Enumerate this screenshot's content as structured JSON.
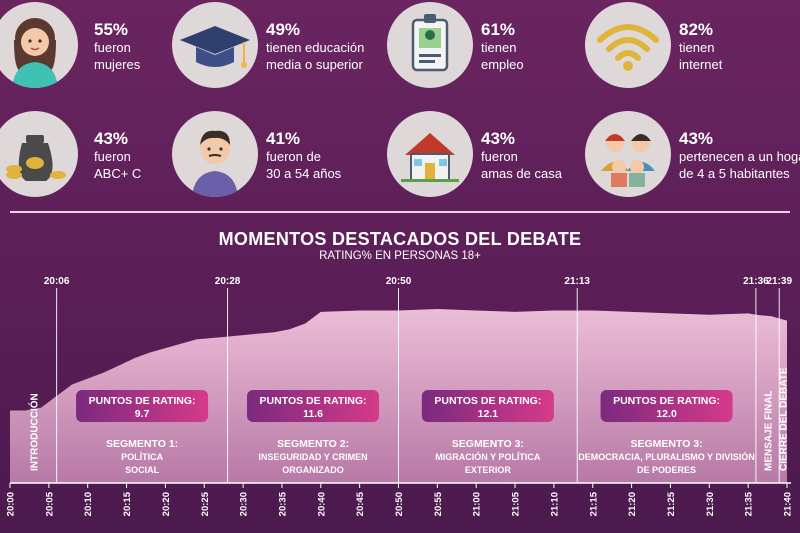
{
  "stats": [
    {
      "pct": "55%",
      "label1": "fueron",
      "label2": "mujeres",
      "icon": "woman-icon"
    },
    {
      "pct": "49%",
      "label1": "tienen educación",
      "label2": "media o superior",
      "icon": "graduation-cap-icon"
    },
    {
      "pct": "61%",
      "label1": "tienen",
      "label2": "empleo",
      "icon": "id-badge-icon"
    },
    {
      "pct": "82%",
      "label1": "tienen",
      "label2": "internet",
      "icon": "wifi-icon"
    },
    {
      "pct": "43%",
      "label1": "fueron",
      "label2": "ABC+ C",
      "icon": "money-bag-icon"
    },
    {
      "pct": "41%",
      "label1": "fueron de",
      "label2": "30 a 54 años",
      "icon": "man-icon"
    },
    {
      "pct": "43%",
      "label1": "fueron",
      "label2": "amas de casa",
      "icon": "house-icon"
    },
    {
      "pct": "43%",
      "label1": "pertenecen a un hogar",
      "label2": "de 4 a 5 habitantes",
      "icon": "family-icon"
    }
  ],
  "colors": {
    "accent_pink": "#d63a8a",
    "accent_purple": "#7a2a7e",
    "area_top": "#e9b7d2",
    "area_bottom": "#c98ab2"
  },
  "chart_data": {
    "type": "area",
    "title": "MOMENTOS DESTACADOS DEL DEBATE",
    "subtitle": "RATING% EN PERSONAS 18+",
    "x_ticks": [
      "20:00",
      "20:05",
      "20:10",
      "20:15",
      "20:20",
      "20:25",
      "20:30",
      "20:35",
      "20:40",
      "20:45",
      "20:50",
      "20:55",
      "21:00",
      "21:05",
      "21:10",
      "21:15",
      "21:20",
      "21:25",
      "21:30",
      "21:35",
      "21:40"
    ],
    "x_range_minutes": [
      0,
      100
    ],
    "y_range": [
      0,
      14
    ],
    "series": [
      {
        "name": "Rating",
        "x": [
          0,
          2,
          4,
          6,
          8,
          10,
          12,
          14,
          16,
          18,
          20,
          22,
          24,
          26,
          28,
          30,
          32,
          34,
          36,
          38,
          40,
          45,
          50,
          55,
          60,
          65,
          70,
          75,
          80,
          85,
          90,
          95,
          96,
          98,
          100
        ],
        "y": [
          5.0,
          5.0,
          5.2,
          6.0,
          6.8,
          7.2,
          7.6,
          8.1,
          8.6,
          9.0,
          9.3,
          9.6,
          9.9,
          10.0,
          10.1,
          10.2,
          10.3,
          10.4,
          10.6,
          11.0,
          11.8,
          11.9,
          11.9,
          12.0,
          11.9,
          11.8,
          11.9,
          11.9,
          11.8,
          11.7,
          11.6,
          11.7,
          11.6,
          11.5,
          11.2
        ]
      }
    ],
    "markers": [
      {
        "label": "20:06",
        "minute": 6
      },
      {
        "label": "20:28",
        "minute": 28
      },
      {
        "label": "20:50",
        "minute": 50
      },
      {
        "label": "21:13",
        "minute": 73
      },
      {
        "label": "21:36",
        "minute": 96
      },
      {
        "label": "21:39",
        "minute": 99
      }
    ],
    "segments": [
      {
        "rating_label": "PUNTOS DE RATING:",
        "rating_value": "9.7",
        "name": "SEGMENTO 1:",
        "desc1": "POLÍTICA",
        "desc2": "SOCIAL",
        "start": 6,
        "end": 28
      },
      {
        "rating_label": "PUNTOS DE RATING:",
        "rating_value": "11.6",
        "name": "SEGMENTO 2:",
        "desc1": "INSEGURIDAD Y CRIMEN",
        "desc2": "ORGANIZADO",
        "start": 28,
        "end": 50
      },
      {
        "rating_label": "PUNTOS DE RATING:",
        "rating_value": "12.1",
        "name": "SEGMENTO 3:",
        "desc1": "MIGRACIÓN Y POLÍTICA",
        "desc2": "EXTERIOR",
        "start": 50,
        "end": 73
      },
      {
        "rating_label": "PUNTOS DE RATING:",
        "rating_value": "12.0",
        "name": "SEGMENTO 3:",
        "desc1": "DEMOCRACIA, PLURALISMO Y DIVISIÓN",
        "desc2": "DE PODERES",
        "start": 73,
        "end": 96
      }
    ],
    "vertical_labels": [
      {
        "text": "INTRODUCCIÓN",
        "minute": 3
      },
      {
        "text": "MENSAJE FINAL",
        "minute": 97.5
      },
      {
        "text": "CIERRE DEL DEBATE",
        "minute": 99.4
      }
    ]
  }
}
